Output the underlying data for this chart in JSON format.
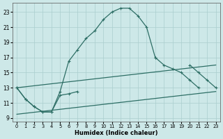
{
  "xlabel": "Humidex (Indice chaleur)",
  "background_color": "#cde8e8",
  "grid_color": "#aacece",
  "line_color": "#2d6e65",
  "xlim": [
    -0.5,
    23.5
  ],
  "ylim": [
    8.5,
    24.2
  ],
  "xticks": [
    0,
    1,
    2,
    3,
    4,
    5,
    6,
    7,
    8,
    9,
    10,
    11,
    12,
    13,
    14,
    15,
    16,
    17,
    18,
    19,
    20,
    21,
    22,
    23
  ],
  "yticks": [
    9,
    11,
    13,
    15,
    17,
    19,
    21,
    23
  ],
  "series": [
    {
      "x": [
        0,
        1,
        2,
        3,
        4,
        5,
        6,
        7,
        8,
        9,
        10,
        11,
        12,
        13,
        14,
        15,
        16,
        17,
        18,
        19,
        20,
        21,
        22,
        23
      ],
      "y": [
        13,
        11.5,
        10.5,
        9.8,
        9.8,
        12.5,
        16.5,
        18.0,
        19.5,
        20.5,
        22.0,
        23.0,
        23.5,
        23.5,
        22.5,
        21.0,
        17.0,
        16.0,
        15.5,
        15.0,
        14.0,
        13.0,
        null,
        null
      ],
      "has_markers": true
    },
    {
      "x": [
        0,
        1,
        2,
        3,
        4,
        5,
        6,
        7,
        8,
        9,
        10,
        11,
        12,
        13,
        14,
        15,
        16,
        17,
        18,
        19,
        20,
        21,
        22,
        23
      ],
      "y": [
        13,
        11.5,
        10.5,
        9.8,
        9.8,
        12.0,
        12.2,
        12.5,
        null,
        null,
        null,
        null,
        null,
        null,
        null,
        null,
        17.0,
        null,
        null,
        null,
        16.0,
        15.0,
        14.0,
        13.0
      ],
      "has_markers": true
    },
    {
      "x": [
        0,
        23
      ],
      "y": [
        13.0,
        16.0
      ],
      "has_markers": false
    },
    {
      "x": [
        0,
        23
      ],
      "y": [
        9.5,
        12.5
      ],
      "has_markers": false
    }
  ]
}
